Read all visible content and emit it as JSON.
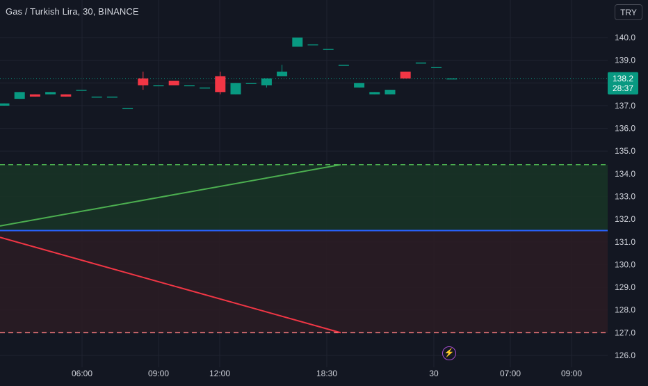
{
  "header": {
    "title": "Gas / Turkish Lira, 30, BINANCE",
    "currency_button": "TRY"
  },
  "price_badge": {
    "price": "138.2",
    "countdown": "28:37",
    "color": "#089981"
  },
  "alert_icon": "lightning-icon",
  "colors": {
    "background": "#131722",
    "up": "#089981",
    "down": "#f23645",
    "grid": "#1f2330",
    "axis_text": "#d1d4dc",
    "entry_line": "#2962ff",
    "target_line": "#4caf50",
    "stop_line": "#f23645",
    "profit_zone": "#183326",
    "loss_zone": "#2a1c24"
  },
  "chart_data": {
    "type": "candlestick",
    "title": "Gas / Turkish Lira, 30, BINANCE",
    "y_ticks": [
      "140.0",
      "139.0",
      "137.0",
      "136.0",
      "135.0",
      "134.0",
      "133.0",
      "132.0",
      "131.0",
      "130.0",
      "129.0",
      "128.0",
      "127.0",
      "126.0"
    ],
    "x_ticks": [
      "06:00",
      "09:00",
      "12:00",
      "18:30",
      "30",
      "07:00",
      "09:00"
    ],
    "ylim": [
      125.6,
      140.4
    ],
    "candles": [
      {
        "o": 137.0,
        "h": 137.1,
        "l": 137.0,
        "c": 137.1
      },
      {
        "o": 137.3,
        "h": 137.6,
        "l": 137.3,
        "c": 137.6
      },
      {
        "o": 137.5,
        "h": 137.5,
        "l": 137.4,
        "c": 137.4
      },
      {
        "o": 137.5,
        "h": 137.6,
        "l": 137.5,
        "c": 137.6
      },
      {
        "o": 137.5,
        "h": 137.5,
        "l": 137.4,
        "c": 137.4
      },
      {
        "o": 137.7,
        "h": 137.7,
        "l": 137.7,
        "c": 137.7
      },
      {
        "o": 137.4,
        "h": 137.4,
        "l": 137.4,
        "c": 137.4
      },
      {
        "o": 137.4,
        "h": 137.4,
        "l": 137.4,
        "c": 137.4
      },
      {
        "o": 136.9,
        "h": 136.9,
        "l": 136.9,
        "c": 136.9
      },
      {
        "o": 138.2,
        "h": 138.5,
        "l": 137.7,
        "c": 137.9
      },
      {
        "o": 137.9,
        "h": 137.9,
        "l": 137.9,
        "c": 137.9
      },
      {
        "o": 138.1,
        "h": 138.1,
        "l": 137.9,
        "c": 137.9
      },
      {
        "o": 137.9,
        "h": 137.9,
        "l": 137.9,
        "c": 137.9
      },
      {
        "o": 137.8,
        "h": 137.8,
        "l": 137.8,
        "c": 137.8
      },
      {
        "o": 138.3,
        "h": 138.5,
        "l": 137.5,
        "c": 137.6
      },
      {
        "o": 137.5,
        "h": 138.0,
        "l": 137.5,
        "c": 138.0
      },
      {
        "o": 138.0,
        "h": 138.0,
        "l": 138.0,
        "c": 138.0
      },
      {
        "o": 137.9,
        "h": 138.2,
        "l": 137.8,
        "c": 138.2
      },
      {
        "o": 138.3,
        "h": 138.8,
        "l": 138.3,
        "c": 138.5
      },
      {
        "o": 139.6,
        "h": 140.0,
        "l": 139.6,
        "c": 140.0
      },
      {
        "o": 139.7,
        "h": 139.7,
        "l": 139.7,
        "c": 139.7
      },
      {
        "o": 139.5,
        "h": 139.5,
        "l": 139.5,
        "c": 139.5
      },
      {
        "o": 138.8,
        "h": 138.8,
        "l": 138.8,
        "c": 138.8
      },
      {
        "o": 137.8,
        "h": 138.0,
        "l": 137.8,
        "c": 138.0
      },
      {
        "o": 137.5,
        "h": 137.6,
        "l": 137.5,
        "c": 137.6
      },
      {
        "o": 137.5,
        "h": 137.7,
        "l": 137.5,
        "c": 137.7
      },
      {
        "o": 138.5,
        "h": 138.5,
        "l": 138.2,
        "c": 138.2
      },
      {
        "o": 138.9,
        "h": 138.9,
        "l": 138.9,
        "c": 138.9
      },
      {
        "o": 138.7,
        "h": 138.7,
        "l": 138.7,
        "c": 138.7
      },
      {
        "o": 138.2,
        "h": 138.2,
        "l": 138.2,
        "c": 138.2
      }
    ],
    "last_price": 138.2,
    "position": {
      "entry": 131.5,
      "target": 134.4,
      "stop": 127.0,
      "target_ray": {
        "from": 131.7,
        "to": 134.4
      },
      "stop_ray": {
        "from": 131.2,
        "to": 127.0
      }
    },
    "grid": true
  }
}
